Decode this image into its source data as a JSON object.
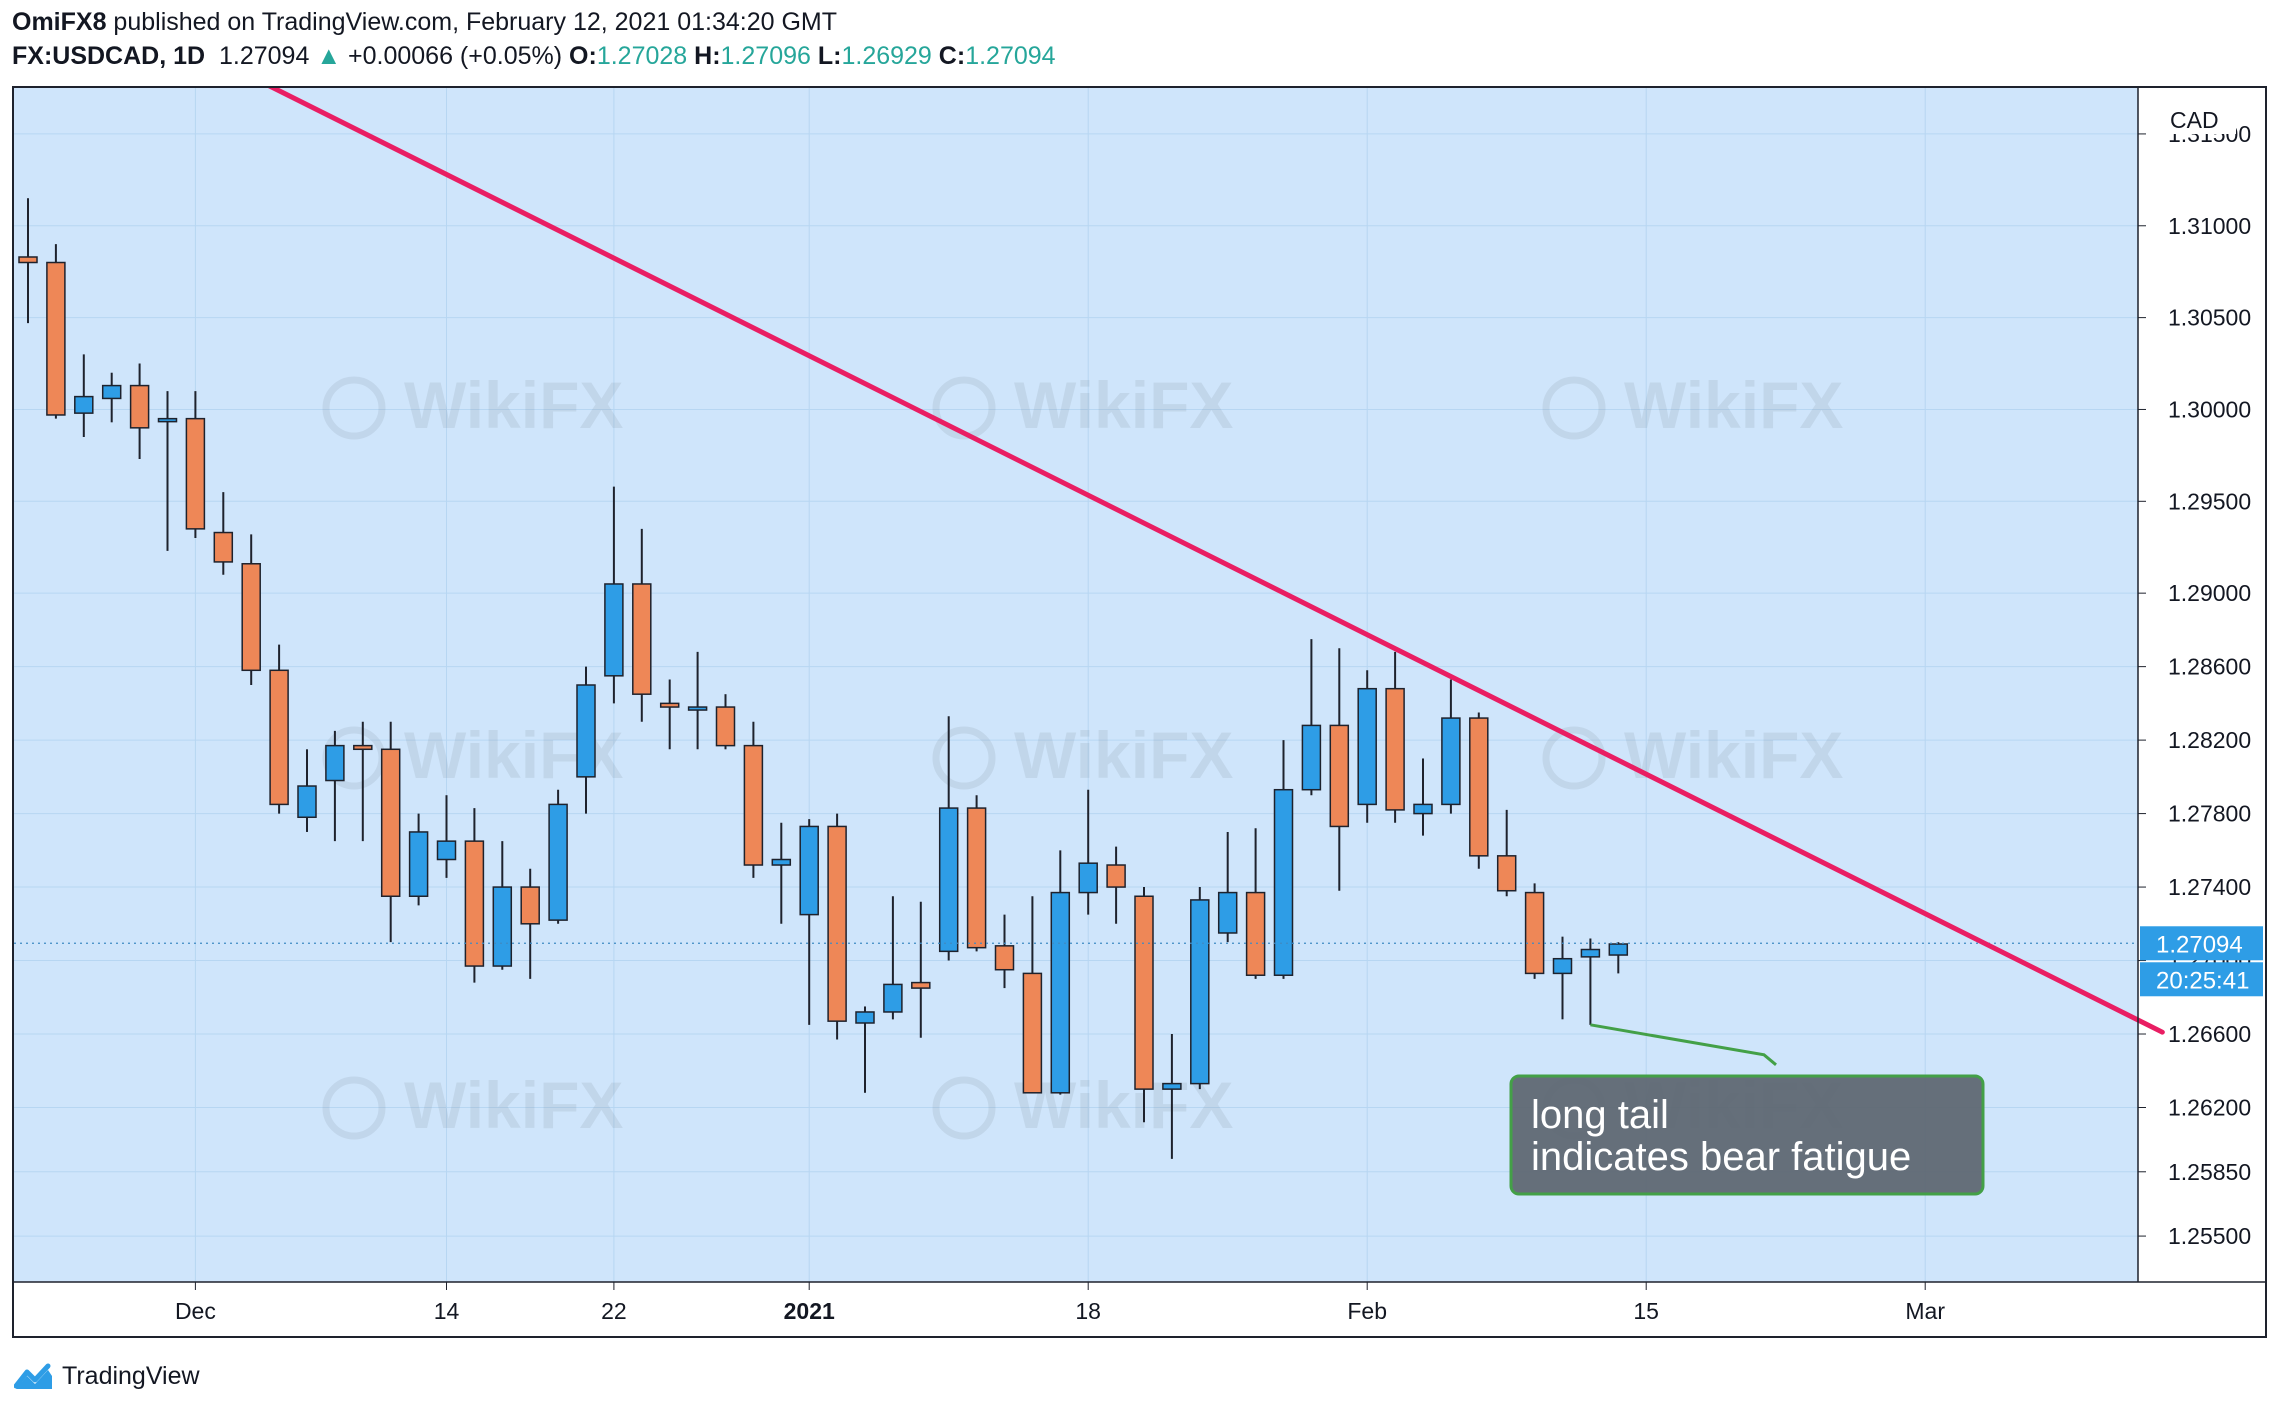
{
  "header": {
    "publisher": "OmiFX8",
    "published_text": " published on TradingView.com, February 12, 2021 01:34:20 GMT",
    "symbol": "FX:USDCAD, 1D",
    "last": "1.27094",
    "change_arrow": "▲",
    "change": "+0.00066 (+0.05%)",
    "o_label": "O:",
    "o": "1.27028",
    "h_label": "H:",
    "h": "1.27096",
    "l_label": "L:",
    "l": "1.26929",
    "c_label": "C:",
    "c": "1.27094"
  },
  "footer": {
    "brand": "TradingView",
    "logo_icon": "tradingview-logo-icon"
  },
  "watermark": "WikiFX",
  "colors": {
    "background": "#cfe5fb",
    "up": "#2e9de6",
    "down": "#ee8757",
    "candle_border": "#1e222d",
    "trendline": "#e91e63",
    "grid": "#b7d6f2",
    "price_tag": "#2e9de6",
    "annotation_fill": "#5d6670",
    "annotation_border": "#43a047",
    "header_up": "#26a69a"
  },
  "chart_data": {
    "type": "candlestick",
    "symbol": "FX:USDCAD",
    "interval": "1D",
    "currency_label": "CAD",
    "ylim": [
      1.2525,
      1.3175
    ],
    "y_ticks": [
      "1.25500",
      "1.25850",
      "1.26200",
      "1.26600",
      "1.27000",
      "1.27400",
      "1.27800",
      "1.28200",
      "1.28600",
      "1.29000",
      "1.29500",
      "1.30000",
      "1.30500",
      "1.31000",
      "1.31500"
    ],
    "y_tick_values": [
      1.255,
      1.2585,
      1.262,
      1.266,
      1.27,
      1.274,
      1.278,
      1.282,
      1.286,
      1.29,
      1.295,
      1.3,
      1.305,
      1.31,
      1.315
    ],
    "x_ticks": [
      {
        "label": "Dec",
        "index": 6,
        "bold": false
      },
      {
        "label": "14",
        "index": 15,
        "bold": false
      },
      {
        "label": "22",
        "index": 21,
        "bold": false
      },
      {
        "label": "2021",
        "index": 28,
        "bold": true
      },
      {
        "label": "18",
        "index": 38,
        "bold": false
      },
      {
        "label": "Feb",
        "index": 48,
        "bold": false
      },
      {
        "label": "15",
        "index": 58,
        "bold": false
      },
      {
        "label": "Mar",
        "index": 68,
        "bold": false
      }
    ],
    "candles": [
      {
        "o": 1.3083,
        "h": 1.3115,
        "l": 1.3047,
        "c": 1.308
      },
      {
        "o": 1.308,
        "h": 1.309,
        "l": 1.2995,
        "c": 1.2997
      },
      {
        "o": 1.2998,
        "h": 1.303,
        "l": 1.2985,
        "c": 1.3007
      },
      {
        "o": 1.3006,
        "h": 1.302,
        "l": 1.2993,
        "c": 1.3013
      },
      {
        "o": 1.3013,
        "h": 1.3025,
        "l": 1.2973,
        "c": 1.299
      },
      {
        "o": 1.2995,
        "h": 1.301,
        "l": 1.2923,
        "c": 1.2995
      },
      {
        "o": 1.2995,
        "h": 1.301,
        "l": 1.293,
        "c": 1.2935
      },
      {
        "o": 1.2933,
        "h": 1.2955,
        "l": 1.291,
        "c": 1.2917
      },
      {
        "o": 1.2916,
        "h": 1.2932,
        "l": 1.285,
        "c": 1.2858
      },
      {
        "o": 1.2858,
        "h": 1.2872,
        "l": 1.278,
        "c": 1.2785
      },
      {
        "o": 1.2778,
        "h": 1.2815,
        "l": 1.277,
        "c": 1.2795
      },
      {
        "o": 1.2798,
        "h": 1.2825,
        "l": 1.2765,
        "c": 1.2817
      },
      {
        "o": 1.2817,
        "h": 1.283,
        "l": 1.2765,
        "c": 1.2815
      },
      {
        "o": 1.2815,
        "h": 1.283,
        "l": 1.271,
        "c": 1.2735
      },
      {
        "o": 1.2735,
        "h": 1.278,
        "l": 1.273,
        "c": 1.277
      },
      {
        "o": 1.2755,
        "h": 1.279,
        "l": 1.2745,
        "c": 1.2765
      },
      {
        "o": 1.2765,
        "h": 1.2783,
        "l": 1.2688,
        "c": 1.2697
      },
      {
        "o": 1.2697,
        "h": 1.2765,
        "l": 1.2695,
        "c": 1.274
      },
      {
        "o": 1.274,
        "h": 1.275,
        "l": 1.269,
        "c": 1.272
      },
      {
        "o": 1.2722,
        "h": 1.2793,
        "l": 1.272,
        "c": 1.2785
      },
      {
        "o": 1.28,
        "h": 1.286,
        "l": 1.278,
        "c": 1.285
      },
      {
        "o": 1.2855,
        "h": 1.2958,
        "l": 1.284,
        "c": 1.2905
      },
      {
        "o": 1.2905,
        "h": 1.2935,
        "l": 1.283,
        "c": 1.2845
      },
      {
        "o": 1.284,
        "h": 1.2853,
        "l": 1.2815,
        "c": 1.2838
      },
      {
        "o": 1.2838,
        "h": 1.2868,
        "l": 1.2815,
        "c": 1.2838
      },
      {
        "o": 1.2838,
        "h": 1.2845,
        "l": 1.2815,
        "c": 1.2817
      },
      {
        "o": 1.2817,
        "h": 1.283,
        "l": 1.2745,
        "c": 1.2752
      },
      {
        "o": 1.2752,
        "h": 1.2775,
        "l": 1.272,
        "c": 1.2755
      },
      {
        "o": 1.2725,
        "h": 1.2777,
        "l": 1.2665,
        "c": 1.2773
      },
      {
        "o": 1.2773,
        "h": 1.278,
        "l": 1.2657,
        "c": 1.2667
      },
      {
        "o": 1.2666,
        "h": 1.2675,
        "l": 1.2628,
        "c": 1.2672
      },
      {
        "o": 1.2672,
        "h": 1.2735,
        "l": 1.2668,
        "c": 1.2687
      },
      {
        "o": 1.2688,
        "h": 1.2732,
        "l": 1.2658,
        "c": 1.2685
      },
      {
        "o": 1.2705,
        "h": 1.2833,
        "l": 1.27,
        "c": 1.2783
      },
      {
        "o": 1.2783,
        "h": 1.279,
        "l": 1.2705,
        "c": 1.2707
      },
      {
        "o": 1.2708,
        "h": 1.2725,
        "l": 1.2685,
        "c": 1.2695
      },
      {
        "o": 1.2693,
        "h": 1.2735,
        "l": 1.2628,
        "c": 1.2628
      },
      {
        "o": 1.2628,
        "h": 1.276,
        "l": 1.2627,
        "c": 1.2737
      },
      {
        "o": 1.2737,
        "h": 1.2793,
        "l": 1.2725,
        "c": 1.2753
      },
      {
        "o": 1.2752,
        "h": 1.2762,
        "l": 1.272,
        "c": 1.274
      },
      {
        "o": 1.2735,
        "h": 1.274,
        "l": 1.2612,
        "c": 1.263
      },
      {
        "o": 1.263,
        "h": 1.266,
        "l": 1.2592,
        "c": 1.2633
      },
      {
        "o": 1.2633,
        "h": 1.274,
        "l": 1.263,
        "c": 1.2733
      },
      {
        "o": 1.2715,
        "h": 1.277,
        "l": 1.271,
        "c": 1.2737
      },
      {
        "o": 1.2737,
        "h": 1.2772,
        "l": 1.269,
        "c": 1.2692
      },
      {
        "o": 1.2692,
        "h": 1.282,
        "l": 1.269,
        "c": 1.2793
      },
      {
        "o": 1.2793,
        "h": 1.2875,
        "l": 1.279,
        "c": 1.2828
      },
      {
        "o": 1.2828,
        "h": 1.287,
        "l": 1.2738,
        "c": 1.2773
      },
      {
        "o": 1.2785,
        "h": 1.2858,
        "l": 1.2775,
        "c": 1.2848
      },
      {
        "o": 1.2848,
        "h": 1.2868,
        "l": 1.2775,
        "c": 1.2782
      },
      {
        "o": 1.278,
        "h": 1.281,
        "l": 1.2768,
        "c": 1.2785
      },
      {
        "o": 1.2785,
        "h": 1.2853,
        "l": 1.278,
        "c": 1.2832
      },
      {
        "o": 1.2832,
        "h": 1.2835,
        "l": 1.275,
        "c": 1.2757
      },
      {
        "o": 1.2757,
        "h": 1.2782,
        "l": 1.2735,
        "c": 1.2738
      },
      {
        "o": 1.2737,
        "h": 1.2742,
        "l": 1.269,
        "c": 1.2693
      },
      {
        "o": 1.2693,
        "h": 1.2713,
        "l": 1.2668,
        "c": 1.2701
      },
      {
        "o": 1.2702,
        "h": 1.2712,
        "l": 1.2665,
        "c": 1.2706
      },
      {
        "o": 1.2703,
        "h": 1.271,
        "l": 1.2693,
        "c": 1.2709
      }
    ],
    "trendline": {
      "start": {
        "index": 6.3,
        "price": 1.3194
      },
      "end": {
        "index": 76.5,
        "price": 1.2661
      }
    },
    "last_price": {
      "value": 1.27094,
      "label": "1.27094",
      "countdown": "20:25:41"
    },
    "annotation": {
      "line1": "long tail",
      "line2": "indicates bear fatigue",
      "pointer_index": 56,
      "pointer_price": 1.2665
    }
  }
}
